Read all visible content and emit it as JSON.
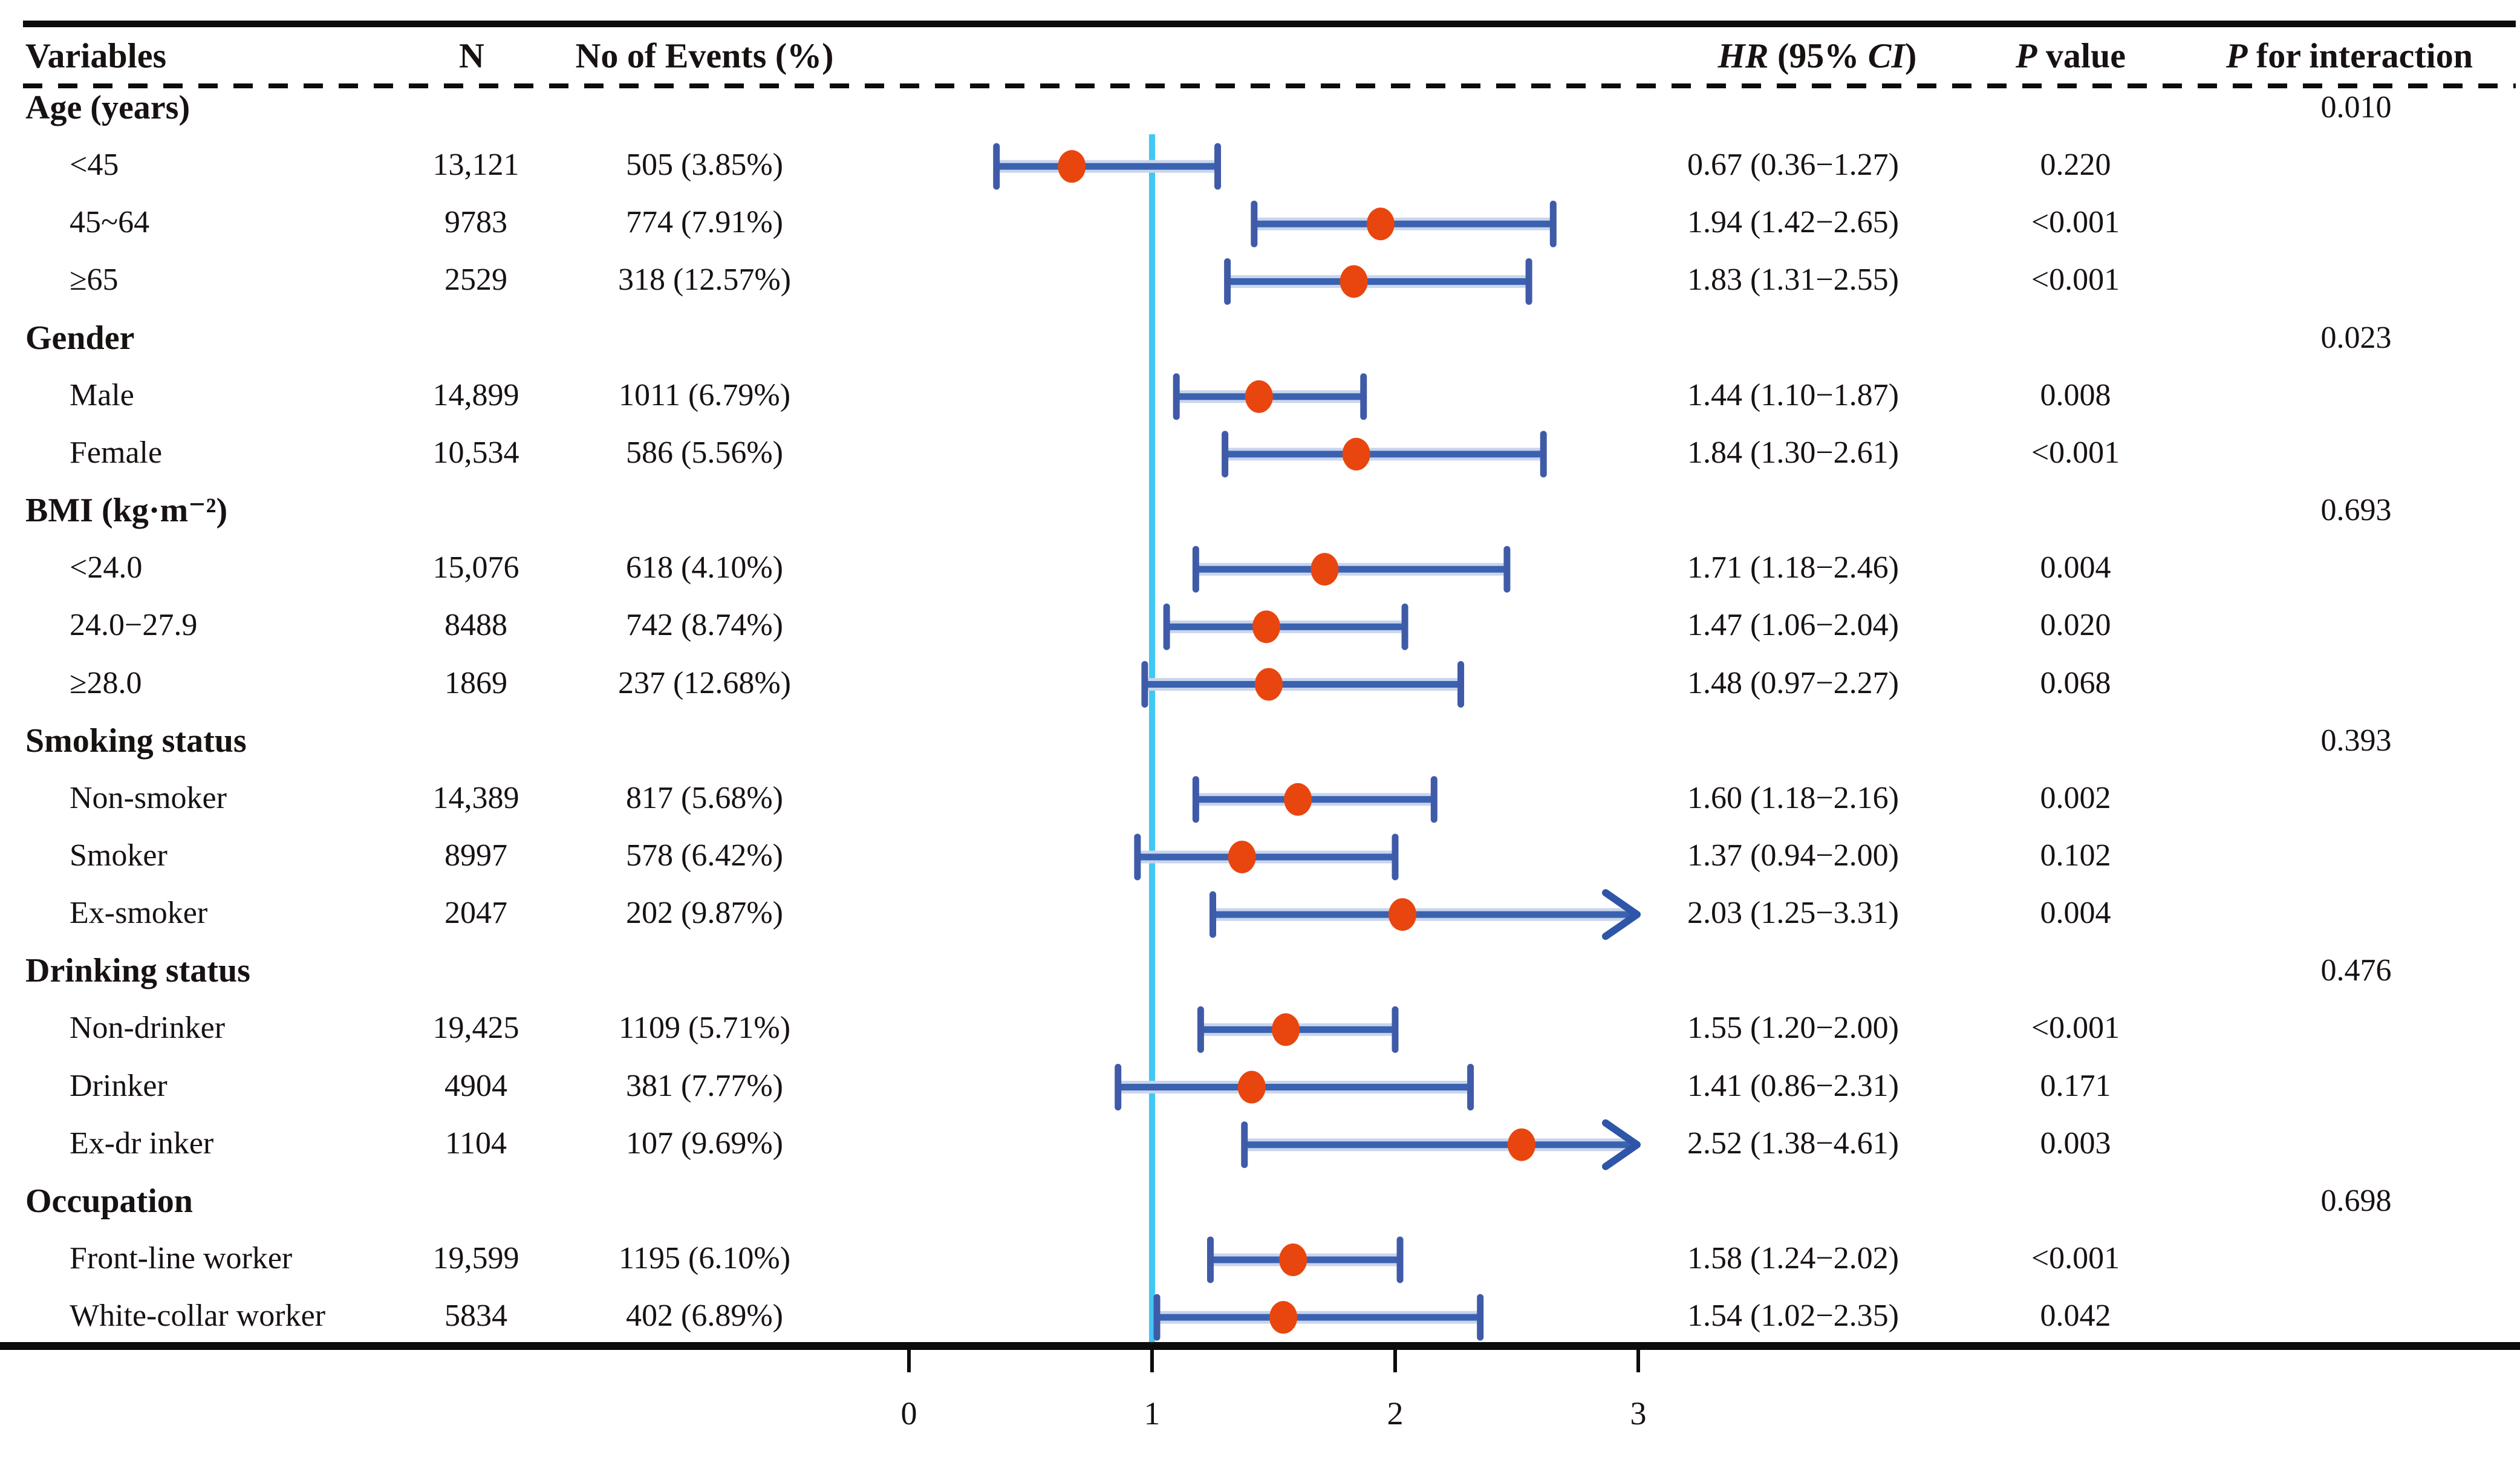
{
  "title_row": {
    "variables": "Variables",
    "n": "N",
    "no_of_events": "No of Events (%)",
    "hr_italic": "HR",
    "hr_mid": " (95% ",
    "ci_italic": "CI",
    "hr_close": ")",
    "p_italic": "P",
    "p_value_rest": " value",
    "pi_italic": "P",
    "pi_rest": " for interaction"
  },
  "chart_data": {
    "type": "forest",
    "title": "Forest plot of subgroup analysis: hazard ratios with 95% confidence intervals",
    "x_axis": {
      "ticks": [
        "0",
        "1",
        "2",
        "3"
      ],
      "tick_values": [
        0,
        1,
        2,
        3
      ],
      "reference_line": 1.0,
      "xlim": [
        0,
        3.3
      ],
      "arrow_clip": 3.0,
      "grid": false
    },
    "colors": {
      "marker": "#e8460e",
      "ci_line": "#3a62b0",
      "ci_halo": "#c9d5ec",
      "ci_cap": "#3f5ba8",
      "arrow": "#2e55a8",
      "reference": "#41c7f4",
      "axis": "#0c0c0c",
      "text": "#171211"
    },
    "rows": [
      {
        "kind": "group",
        "label": "Age (years)",
        "p_interaction": "0.010"
      },
      {
        "kind": "item",
        "label": "<45",
        "n": "13,121",
        "events": "505 (3.85%)",
        "hr": 0.67,
        "ci_low": 0.36,
        "ci_high": 1.27,
        "hr_ci": "0.67 (0.36−1.27)",
        "p": "0.220",
        "arrow": false
      },
      {
        "kind": "item",
        "label": "45~64",
        "n": "9783",
        "events": "774 (7.91%)",
        "hr": 1.94,
        "ci_low": 1.42,
        "ci_high": 2.65,
        "hr_ci": "1.94 (1.42−2.65)",
        "p": "<0.001",
        "arrow": false
      },
      {
        "kind": "item",
        "label": "≥65",
        "n": "2529",
        "events": "318 (12.57%)",
        "hr": 1.83,
        "ci_low": 1.31,
        "ci_high": 2.55,
        "hr_ci": "1.83 (1.31−2.55)",
        "p": "<0.001",
        "arrow": false
      },
      {
        "kind": "group",
        "label": "Gender",
        "p_interaction": "0.023"
      },
      {
        "kind": "item",
        "label": "Male",
        "n": "14,899",
        "events": "1011 (6.79%)",
        "hr": 1.44,
        "ci_low": 1.1,
        "ci_high": 1.87,
        "hr_ci": "1.44 (1.10−1.87)",
        "p": "0.008",
        "arrow": false
      },
      {
        "kind": "item",
        "label": "Female",
        "n": "10,534",
        "events": "586 (5.56%)",
        "hr": 1.84,
        "ci_low": 1.3,
        "ci_high": 2.61,
        "hr_ci": "1.84 (1.30−2.61)",
        "p": "<0.001",
        "arrow": false
      },
      {
        "kind": "group",
        "label": "BMI (kg·m⁻²)",
        "p_interaction": "0.693"
      },
      {
        "kind": "item",
        "label": "<24.0",
        "n": "15,076",
        "events": "618 (4.10%)",
        "hr": 1.71,
        "ci_low": 1.18,
        "ci_high": 2.46,
        "hr_ci": "1.71 (1.18−2.46)",
        "p": "0.004",
        "arrow": false
      },
      {
        "kind": "item",
        "label": "24.0−27.9",
        "n": "8488",
        "events": "742 (8.74%)",
        "hr": 1.47,
        "ci_low": 1.06,
        "ci_high": 2.04,
        "hr_ci": "1.47 (1.06−2.04)",
        "p": "0.020",
        "arrow": false
      },
      {
        "kind": "item",
        "label": "≥28.0",
        "n": "1869",
        "events": "237 (12.68%)",
        "hr": 1.48,
        "ci_low": 0.97,
        "ci_high": 2.27,
        "hr_ci": "1.48 (0.97−2.27)",
        "p": "0.068",
        "arrow": false
      },
      {
        "kind": "group",
        "label": "Smoking status",
        "p_interaction": "0.393"
      },
      {
        "kind": "item",
        "label": "Non-smoker",
        "n": "14,389",
        "events": "817 (5.68%)",
        "hr": 1.6,
        "ci_low": 1.18,
        "ci_high": 2.16,
        "hr_ci": "1.60 (1.18−2.16)",
        "p": "0.002",
        "arrow": false
      },
      {
        "kind": "item",
        "label": "Smoker",
        "n": "8997",
        "events": "578 (6.42%)",
        "hr": 1.37,
        "ci_low": 0.94,
        "ci_high": 2.0,
        "hr_ci": "1.37 (0.94−2.00)",
        "p": "0.102",
        "arrow": false
      },
      {
        "kind": "item",
        "label": "Ex-smoker",
        "n": "2047",
        "events": "202 (9.87%)",
        "hr": 2.03,
        "ci_low": 1.25,
        "ci_high": 3.31,
        "hr_ci": "2.03 (1.25−3.31)",
        "p": "0.004",
        "arrow": true
      },
      {
        "kind": "group",
        "label": "Drinking status",
        "p_interaction": "0.476"
      },
      {
        "kind": "item",
        "label": "Non-drinker",
        "n": "19,425",
        "events": "1109 (5.71%)",
        "hr": 1.55,
        "ci_low": 1.2,
        "ci_high": 2.0,
        "hr_ci": "1.55 (1.20−2.00)",
        "p": "<0.001",
        "arrow": false
      },
      {
        "kind": "item",
        "label": "Drinker",
        "n": "4904",
        "events": "381 (7.77%)",
        "hr": 1.41,
        "ci_low": 0.86,
        "ci_high": 2.31,
        "hr_ci": "1.41 (0.86−2.31)",
        "p": "0.171",
        "arrow": false
      },
      {
        "kind": "item",
        "label": "Ex-dr inker",
        "n": "1104",
        "events": "107 (9.69%)",
        "hr": 2.52,
        "ci_low": 1.38,
        "ci_high": 4.61,
        "hr_ci": "2.52 (1.38−4.61)",
        "p": "0.003",
        "arrow": true
      },
      {
        "kind": "group",
        "label": "Occupation",
        "p_interaction": "0.698"
      },
      {
        "kind": "item",
        "label": "Front-line worker",
        "n": "19,599",
        "events": "1195 (6.10%)",
        "hr": 1.58,
        "ci_low": 1.24,
        "ci_high": 2.02,
        "hr_ci": "1.58 (1.24−2.02)",
        "p": "<0.001",
        "arrow": false
      },
      {
        "kind": "item",
        "label": "White-collar worker",
        "n": "5834",
        "events": "402 (6.89%)",
        "hr": 1.54,
        "ci_low": 1.02,
        "ci_high": 2.35,
        "hr_ci": "1.54 (1.02−2.35)",
        "p": "0.042",
        "arrow": false
      }
    ]
  }
}
